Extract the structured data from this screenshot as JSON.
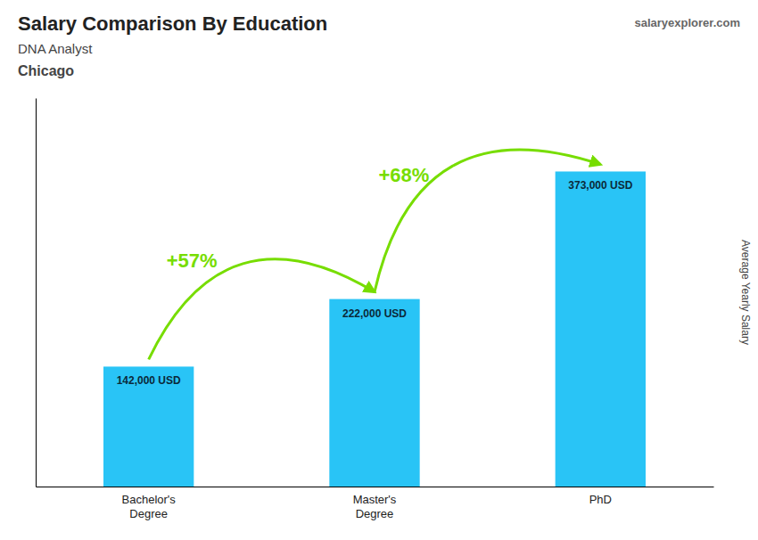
{
  "chart_data": {
    "type": "bar",
    "title": "Salary Comparison By Education",
    "subtitle": [
      "DNA Analyst",
      "Chicago"
    ],
    "ylabel": "Average Yearly Salary",
    "categories": [
      "Bachelor's\nDegree",
      "Master's\nDegree",
      "PhD"
    ],
    "values": [
      142000,
      222000,
      373000
    ],
    "value_labels": [
      "142,000 USD",
      "222,000 USD",
      "373,000 USD"
    ],
    "data_labels": true,
    "color": "#29C4F6",
    "ylim": [
      0,
      460000
    ],
    "tick_labels": "x",
    "annotations": [
      {
        "text": "+57%",
        "from": 0,
        "to": 1,
        "color": "#77DD00"
      },
      {
        "text": "+68%",
        "from": 1,
        "to": 2,
        "color": "#77DD00"
      }
    ],
    "watermark": [
      "salary",
      "explorer",
      ".com"
    ]
  }
}
